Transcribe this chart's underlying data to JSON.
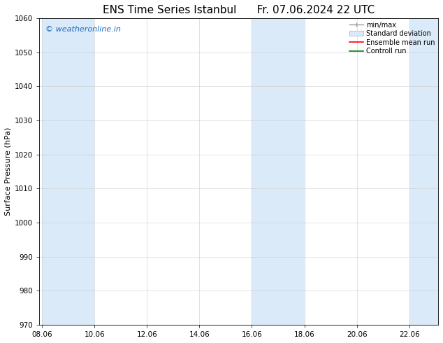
{
  "title_left": "ENS Time Series Istanbul",
  "title_right": "Fr. 07.06.2024 22 UTC",
  "ylabel": "Surface Pressure (hPa)",
  "ylim": [
    970,
    1060
  ],
  "yticks": [
    970,
    980,
    990,
    1000,
    1010,
    1020,
    1030,
    1040,
    1050,
    1060
  ],
  "xtick_labels": [
    "08.06",
    "10.06",
    "12.06",
    "14.06",
    "16.06",
    "18.06",
    "20.06",
    "22.06"
  ],
  "xtick_positions": [
    0,
    2,
    4,
    6,
    8,
    10,
    12,
    14
  ],
  "xlim": [
    -0.1,
    15.1
  ],
  "shaded_bands": [
    {
      "xmin": 0,
      "xmax": 2,
      "color": "#daeaf8"
    },
    {
      "xmin": 8,
      "xmax": 10,
      "color": "#daeaf8"
    },
    {
      "xmin": 14,
      "xmax": 15.1,
      "color": "#daeaf8"
    }
  ],
  "watermark_text": "© weatheronline.in",
  "watermark_color": "#1a6bbf",
  "watermark_fontsize": 8,
  "legend_items": [
    {
      "label": "min/max",
      "style": "minmax"
    },
    {
      "label": "Standard deviation",
      "style": "rect"
    },
    {
      "label": "Ensemble mean run",
      "style": "line_red"
    },
    {
      "label": "Controll run",
      "style": "line_green"
    }
  ],
  "background_color": "#ffffff",
  "plot_bg_color": "#ffffff",
  "title_fontsize": 11,
  "label_fontsize": 8,
  "tick_fontsize": 7.5,
  "legend_fontsize": 7,
  "spine_color": "#000000",
  "grid_color": "#cccccc"
}
